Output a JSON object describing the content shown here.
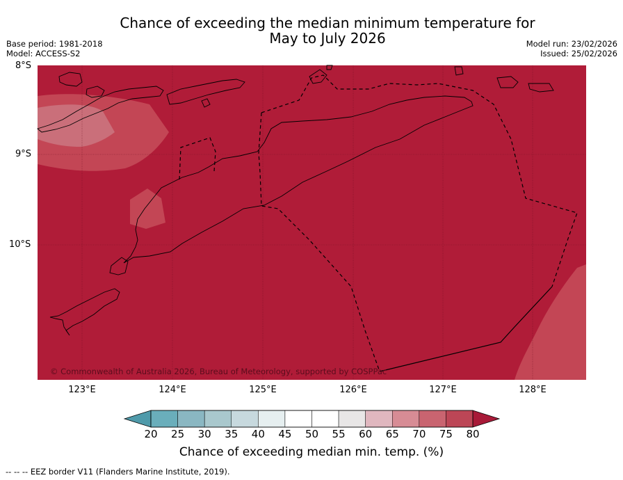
{
  "title_line1": "Chance of exceeding the median minimum temperature for",
  "title_line2": "May to July 2026",
  "base_period": "Base period: 1981-2018",
  "model": "Model: ACCESS-S2",
  "model_run": "Model run: 23/02/2026",
  "issued": "Issued: 25/02/2026",
  "map": {
    "latitude_labels": [
      "8°S",
      "9°S",
      "10°S"
    ],
    "longitude_labels": [
      "123°E",
      "124°E",
      "125°E",
      "126°E",
      "127°E",
      "128°E"
    ],
    "copyright": "© Commonwealth of Australia 2026, Bureau of Meteorology, supported by COSPPac",
    "region_category_percent": "80+"
  },
  "colorbar": {
    "ticks": [
      "20",
      "25",
      "30",
      "35",
      "40",
      "45",
      "50",
      "55",
      "60",
      "65",
      "70",
      "75",
      "80"
    ],
    "colors": [
      "#4f9aaa",
      "#6aaebb",
      "#8ab7c2",
      "#a9c8cd",
      "#c7d9de",
      "#e6eff0",
      "#ffffff",
      "#ffffff",
      "#e8e6e6",
      "#e0b7bf",
      "#d78c95",
      "#c96470",
      "#bc4656",
      "#a81a38"
    ],
    "label": "Chance of exceeding median min. temp. (%)"
  },
  "colors": {
    "cat80": "#b01c38",
    "cat75": "#c34655",
    "cat70": "#c96d78"
  },
  "footer": "--  --  -- EEZ border V11 (Flanders Marine Institute, 2019)."
}
